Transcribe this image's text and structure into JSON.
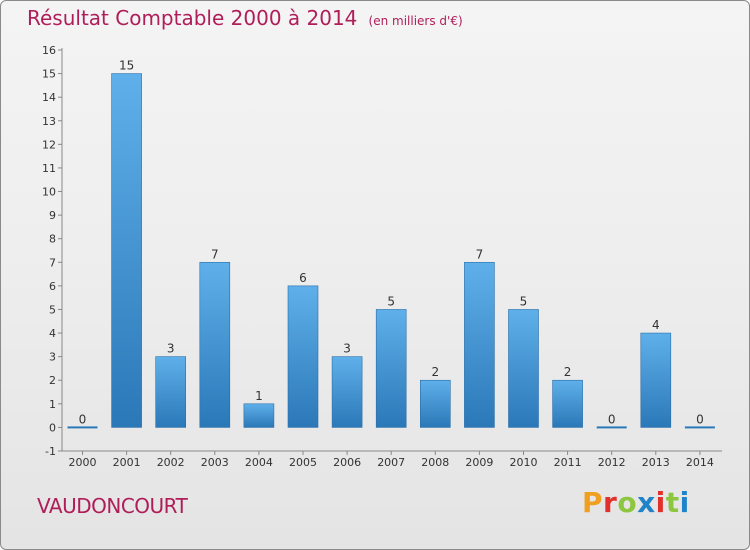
{
  "header": {
    "title": "Résultat Comptable 2000 à 2014",
    "unit": "(en milliers d'€)"
  },
  "commune": "VAUDONCOURT",
  "logo": {
    "text": "Proxiti",
    "letters": [
      "P",
      "r",
      "o",
      "x",
      "i",
      "t",
      "i"
    ]
  },
  "colors": {
    "title": "#b01e5a",
    "bar_top": "#5fb0ea",
    "bar_bottom": "#2b78b8",
    "logo": [
      "#f0a020",
      "#e2302a",
      "#8dc63f",
      "#1f83c9",
      "#e2302a",
      "#8dc63f",
      "#1f83c9"
    ]
  },
  "chart_data": {
    "type": "bar",
    "title": "Résultat Comptable 2000 à 2014",
    "subtitle": "(en milliers d'€)",
    "xlabel": "",
    "ylabel": "",
    "categories": [
      "2000",
      "2001",
      "2002",
      "2003",
      "2004",
      "2005",
      "2006",
      "2007",
      "2008",
      "2009",
      "2010",
      "2011",
      "2012",
      "2013",
      "2014"
    ],
    "values": [
      0,
      15,
      3,
      7,
      1,
      6,
      3,
      5,
      2,
      7,
      5,
      2,
      0,
      4,
      0
    ],
    "value_labels": [
      "0",
      "15",
      "3",
      "7",
      "1",
      "6",
      "3",
      "5",
      "2",
      "7",
      "5",
      "2",
      "0",
      "4",
      "0"
    ],
    "ylim": [
      -1,
      16
    ],
    "yticks": [
      "-1",
      "0",
      "1",
      "2",
      "3",
      "4",
      "5",
      "6",
      "7",
      "8",
      "9",
      "10",
      "11",
      "12",
      "13",
      "14",
      "15",
      "16"
    ],
    "grid": false,
    "legend": "none"
  }
}
